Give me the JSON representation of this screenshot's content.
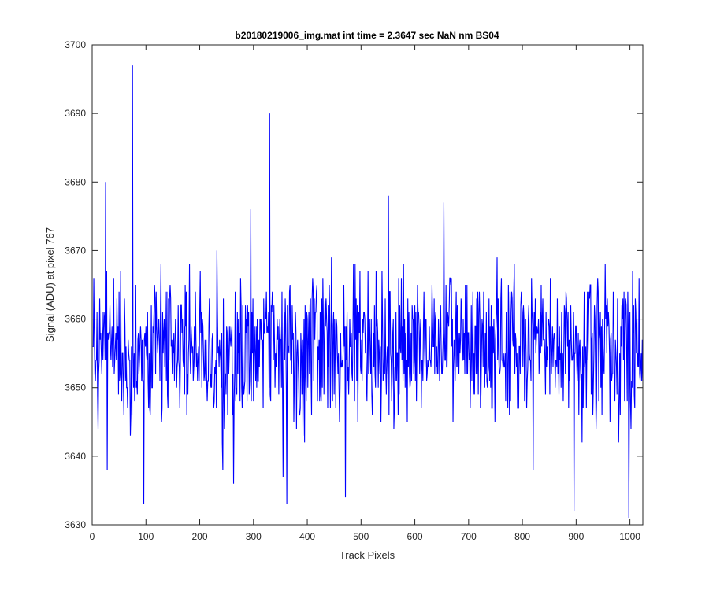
{
  "chart_data": {
    "type": "line",
    "title": "b20180219006_img.mat int time = 2.3647 sec  NaN nm BS04",
    "xlabel": "Track Pixels",
    "ylabel": "Signal (ADU) at pixel 767",
    "xlim": [
      0,
      1024
    ],
    "ylim": [
      3630,
      3700
    ],
    "xticks": [
      0,
      100,
      200,
      300,
      400,
      500,
      600,
      700,
      800,
      900,
      1000
    ],
    "yticks": [
      3630,
      3640,
      3650,
      3660,
      3670,
      3680,
      3690,
      3700
    ],
    "xtick_labels": [
      "0",
      "100",
      "200",
      "300",
      "400",
      "500",
      "600",
      "700",
      "800",
      "900",
      "1000"
    ],
    "ytick_labels": [
      "3630",
      "3640",
      "3650",
      "3660",
      "3670",
      "3680",
      "3690",
      "3700"
    ],
    "grid": false,
    "legend": "none",
    "line_color": "#0000ff",
    "n_points": 1024,
    "x_start": 1,
    "baseline": 3656,
    "noise_amplitude": 8,
    "spikes": [
      {
        "x": 25,
        "y": 3680
      },
      {
        "x": 28,
        "y": 3638
      },
      {
        "x": 75,
        "y": 3697
      },
      {
        "x": 96,
        "y": 3633
      },
      {
        "x": 243,
        "y": 3638
      },
      {
        "x": 263,
        "y": 3636
      },
      {
        "x": 295,
        "y": 3676
      },
      {
        "x": 330,
        "y": 3690
      },
      {
        "x": 355,
        "y": 3637
      },
      {
        "x": 362,
        "y": 3633
      },
      {
        "x": 471,
        "y": 3634
      },
      {
        "x": 551,
        "y": 3678
      },
      {
        "x": 654,
        "y": 3677
      },
      {
        "x": 820,
        "y": 3638
      },
      {
        "x": 896,
        "y": 3632
      },
      {
        "x": 998,
        "y": 3631
      }
    ],
    "series": [
      {
        "values_note_only": false
      }
    ]
  }
}
